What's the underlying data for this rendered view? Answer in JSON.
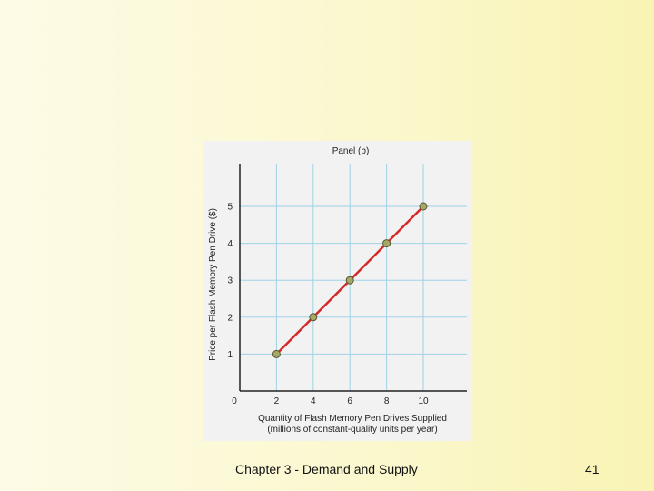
{
  "chart_data": {
    "type": "line",
    "title": "Panel (b)",
    "xlabel": "Quantity of Flash Memory Pen Drives Supplied\n(millions of constant-quality units per year)",
    "ylabel": "Price per Flash Memory Pen Drive ($)",
    "x": [
      2,
      4,
      6,
      8,
      10
    ],
    "series": [
      {
        "values": [
          1,
          2,
          3,
          4,
          5
        ]
      }
    ],
    "xticks": [
      "0",
      "2",
      "4",
      "6",
      "8",
      "10"
    ],
    "yticks": [
      "1",
      "2",
      "3",
      "4",
      "5"
    ],
    "xlim": [
      0,
      12
    ],
    "ylim": [
      0,
      6
    ],
    "grid": true,
    "colors": {
      "line": "#d42a2a",
      "marker": "#a8a866",
      "marker_edge": "#555533",
      "grid": "#9fd3e6",
      "axis": "#222222"
    }
  },
  "footer": {
    "title": "Chapter 3 - Demand and Supply",
    "page_number": "41"
  }
}
